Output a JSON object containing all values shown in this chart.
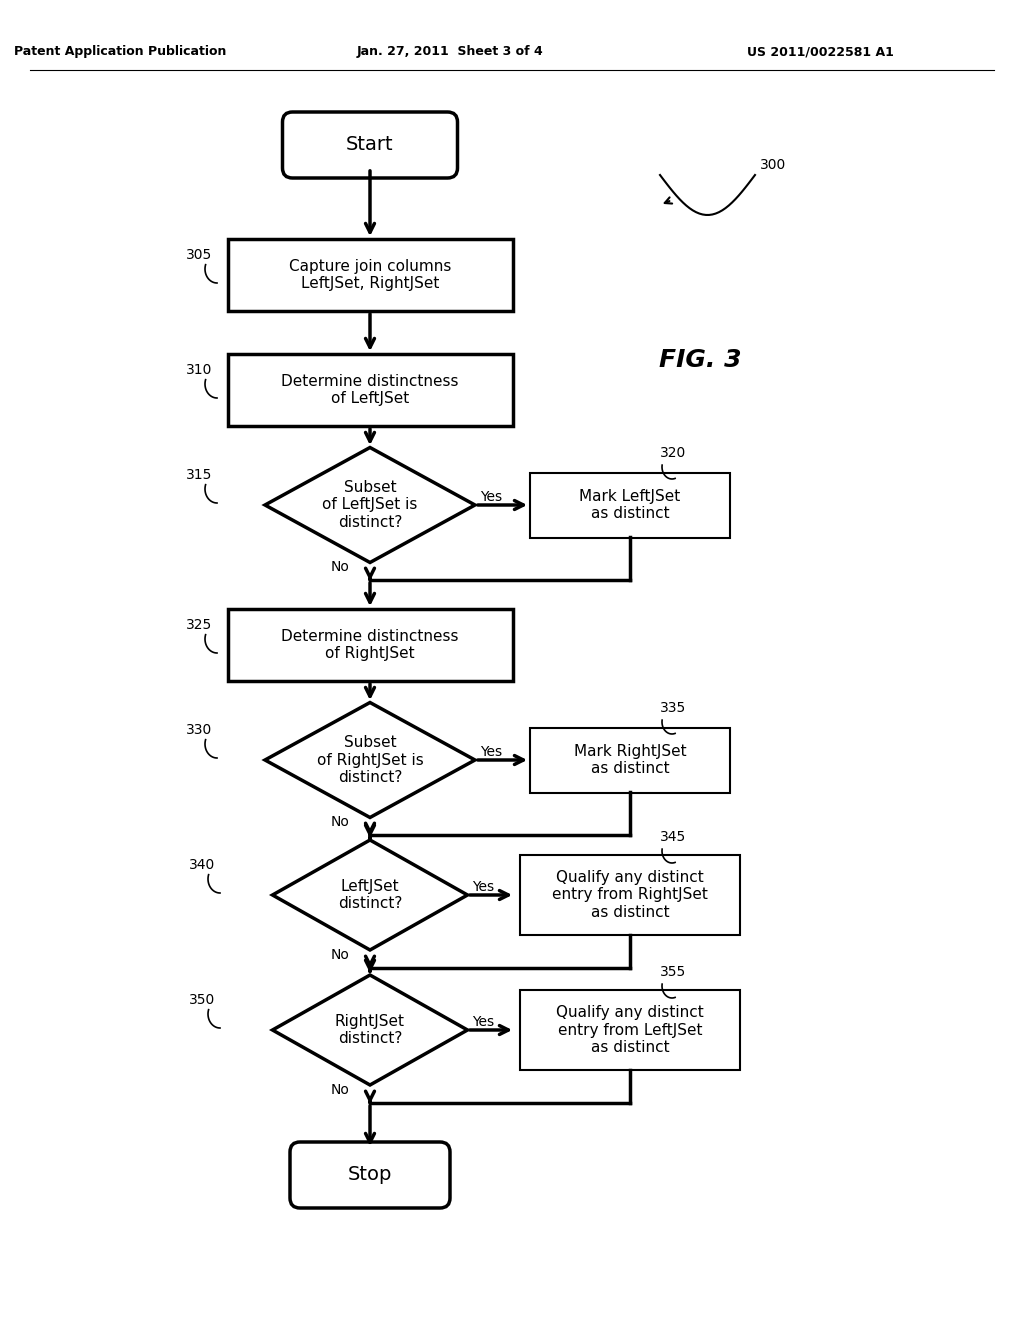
{
  "header_left": "Patent Application Publication",
  "header_center": "Jan. 27, 2011  Sheet 3 of 4",
  "header_right": "US 2011/0022581 A1",
  "fig_label": "FIG. 3",
  "fig_number": "300",
  "bg_color": "#ffffff",
  "text_color": "#000000"
}
